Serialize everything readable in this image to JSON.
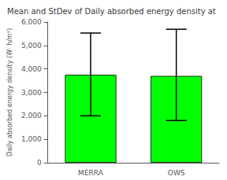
{
  "chart_data": {
    "type": "bar",
    "title": "Mean and StDev of Daily absorbed energy density at",
    "ylabel": "Daily absorbed energy density (W· h/m²)",
    "categories": [
      "MERRA",
      "OWS"
    ],
    "values": [
      3750,
      3700
    ],
    "errors_lower": [
      1750,
      1900
    ],
    "errors_upper": [
      1780,
      1990
    ],
    "color": "#00ff00",
    "ylim": [
      0,
      6000
    ],
    "yticks": [
      0,
      1000,
      2000,
      3000,
      4000,
      5000,
      6000
    ],
    "grid": false
  }
}
